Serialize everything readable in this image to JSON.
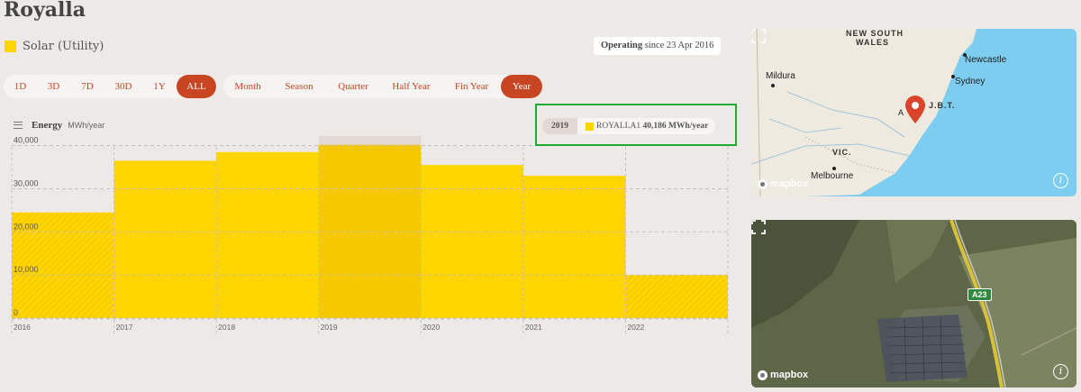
{
  "page": {
    "title": "Royalla"
  },
  "fuel": {
    "label": "Solar (Utility)",
    "color": "#ffd500"
  },
  "status": {
    "bold": "Operating",
    "rest": " since 23 Apr 2016"
  },
  "range_buttons": [
    {
      "label": "1D",
      "active": false
    },
    {
      "label": "3D",
      "active": false
    },
    {
      "label": "7D",
      "active": false
    },
    {
      "label": "30D",
      "active": false
    },
    {
      "label": "1Y",
      "active": false
    },
    {
      "label": "ALL",
      "active": true
    }
  ],
  "interval_buttons": [
    {
      "label": "Month",
      "active": false
    },
    {
      "label": "Season",
      "active": false
    },
    {
      "label": "Quarter",
      "active": false
    },
    {
      "label": "Half Year",
      "active": false
    },
    {
      "label": "Fin Year",
      "active": false
    },
    {
      "label": "Year",
      "active": true
    }
  ],
  "chart_header": {
    "title": "Energy",
    "unit": "MWh/year"
  },
  "tooltip": {
    "year": "2019",
    "series": "ROYALLA1",
    "value": "40,186 MWh/year"
  },
  "chart_data": {
    "type": "bar",
    "title": "Energy",
    "ylabel": "MWh/year",
    "categories": [
      "2016",
      "2017",
      "2018",
      "2019",
      "2020",
      "2021",
      "2022"
    ],
    "series": [
      {
        "name": "ROYALLA1",
        "values": [
          24500,
          36500,
          38500,
          40186,
          35500,
          33000,
          10000
        ]
      }
    ],
    "partial_periods": [
      "2016",
      "2022"
    ],
    "highlighted": "2019",
    "yticks": [
      0,
      10000,
      20000,
      30000,
      40000
    ],
    "ytick_labels": [
      "0",
      "10,000",
      "20,000",
      "30,000",
      "40,000"
    ],
    "ylim": [
      0,
      42000
    ],
    "grid": true,
    "colors": {
      "bar": "#ffd500",
      "highlight": "#f5c800",
      "hover_band": "#e3d8d4"
    }
  },
  "map": {
    "states": [
      "NEW SOUTH",
      "WALES",
      "VIC.",
      "J.B.T."
    ],
    "cities": [
      "Mildura",
      "Newcastle",
      "Sydney",
      "Melbourne"
    ],
    "pin_label": "A",
    "attribution": "mapbox",
    "info": "i"
  },
  "satellite": {
    "road_label": "A23",
    "attribution": "mapbox",
    "info": "i"
  }
}
